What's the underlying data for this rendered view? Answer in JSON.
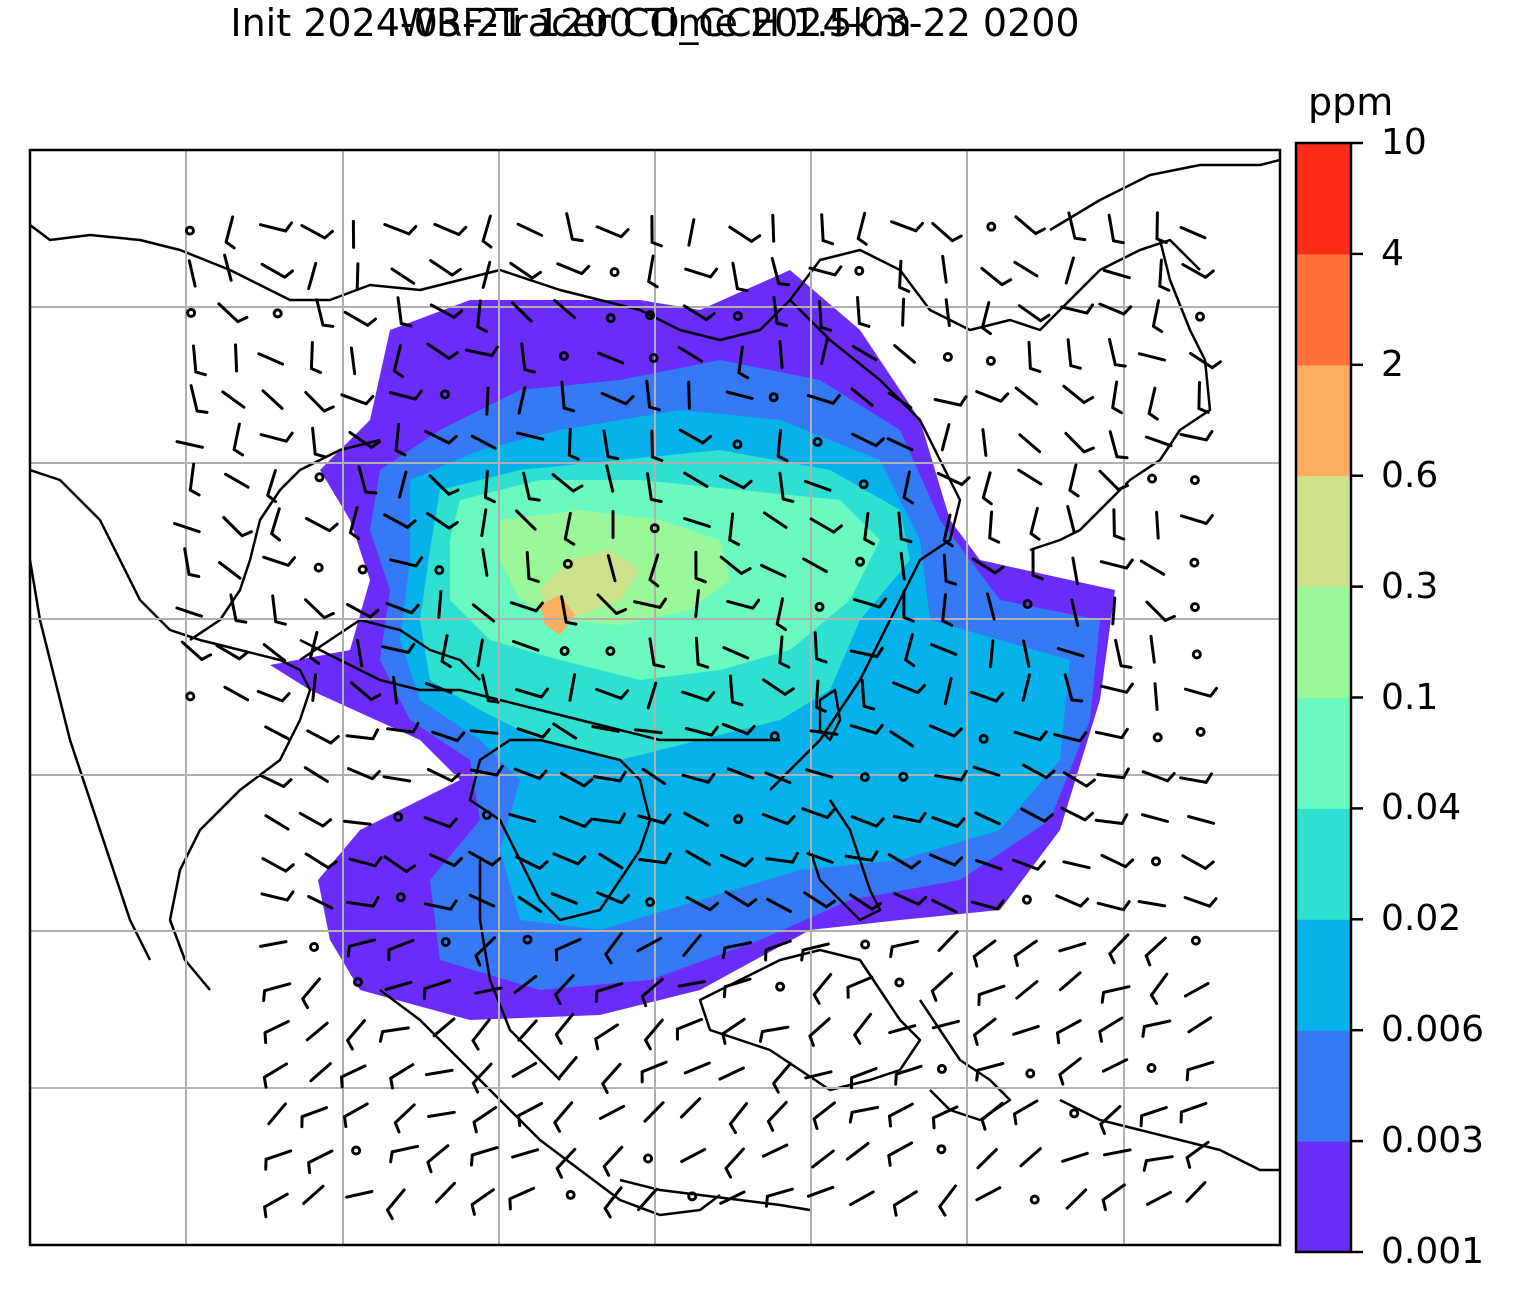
{
  "title_line1": "WRF-Tracer CO_CCH 1.5km",
  "title_line2": "Init 2024-03-21 1200 Time 2024-03-22 0200",
  "colorbar": {
    "unit": "ppm",
    "ticks": [
      "0.001",
      "0.003",
      "0.006",
      "0.02",
      "0.04",
      "0.1",
      "0.3",
      "0.6",
      "2",
      "4",
      "10"
    ],
    "colors": [
      "#6a2cf9",
      "#3579f4",
      "#07b1ea",
      "#2fe0d0",
      "#6af9c0",
      "#9af89a",
      "#cde28a",
      "#fcae60",
      "#ff7138",
      "#fe2b18"
    ]
  },
  "map": {
    "field": "CO_CCH tracer concentration",
    "overlays": [
      "coastlines",
      "country-borders",
      "lat-lon-grid",
      "wind-barbs"
    ]
  }
}
